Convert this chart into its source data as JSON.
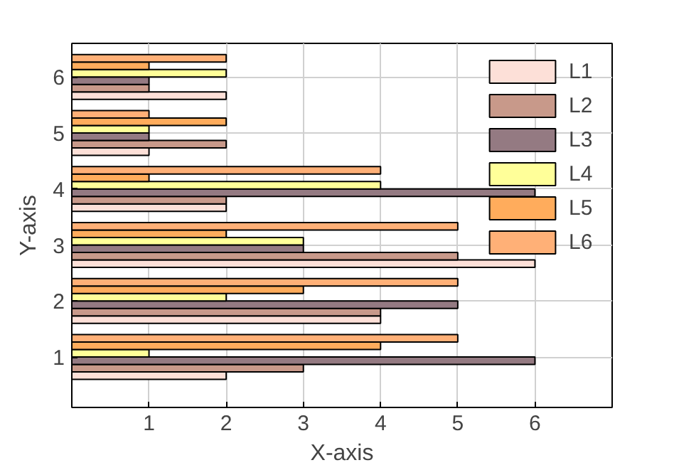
{
  "chart_data": {
    "type": "bar",
    "orientation": "horizontal",
    "xlabel": "X-axis",
    "ylabel": "Y-axis",
    "x": [
      1,
      2,
      3,
      4,
      5,
      6
    ],
    "series": [
      {
        "name": "L1",
        "color": "#fde0d8",
        "values": [
          2,
          4,
          6,
          2,
          1,
          2
        ]
      },
      {
        "name": "L2",
        "color": "#c8998a",
        "values": [
          3,
          4,
          5,
          2,
          2,
          1
        ]
      },
      {
        "name": "L3",
        "color": "#947a82",
        "values": [
          6,
          5,
          3,
          6,
          1,
          1
        ]
      },
      {
        "name": "L4",
        "color": "#ffff99",
        "values": [
          1,
          2,
          3,
          4,
          1,
          2
        ]
      },
      {
        "name": "L5",
        "color": "#ffac5c",
        "values": [
          4,
          3,
          2,
          1,
          2,
          1
        ]
      },
      {
        "name": "L6",
        "color": "#ffb077",
        "values": [
          5,
          5,
          5,
          4,
          1,
          2
        ]
      }
    ],
    "xlim": [
      0,
      7
    ],
    "xticks": [
      1,
      2,
      3,
      4,
      5,
      6
    ],
    "ylim": [
      0.1,
      6.6
    ],
    "yticks": [
      1,
      2,
      3,
      4,
      5,
      6
    ],
    "grid": true,
    "legend": "top right"
  }
}
